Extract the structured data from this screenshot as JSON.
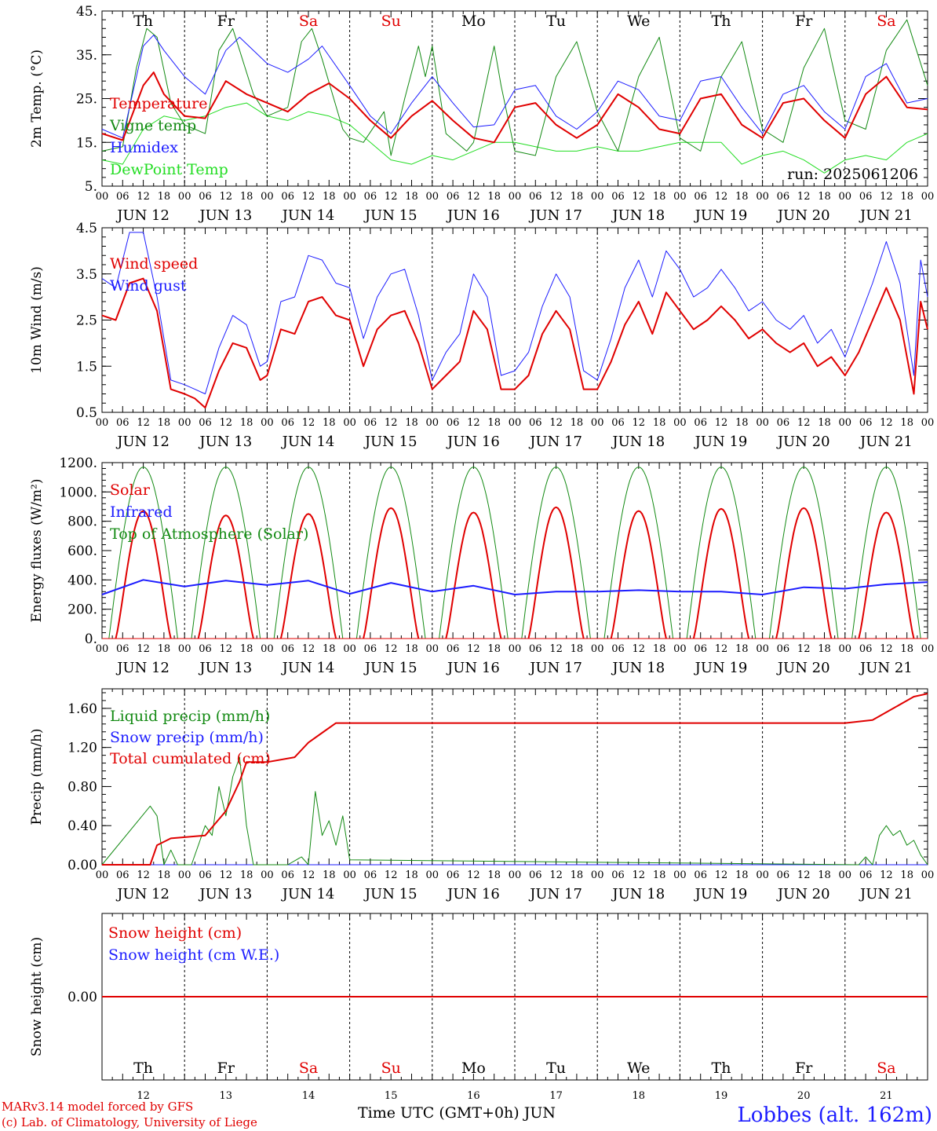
{
  "colors": {
    "red": "#e00000",
    "green": "#138a13",
    "blue": "#1c1cff",
    "lightgreen": "#22dd22",
    "black": "#000000"
  },
  "footer": {
    "model": "MARv3.14 model forced by GFS",
    "lab": "(c) Lab. of Climatology, University of Liege",
    "xtitle": "Time UTC (GMT+0h) JUN",
    "station": "Lobbes (alt. 162m)",
    "run": "run: 2025061206"
  },
  "days": [
    "Th",
    "Fr",
    "Sa",
    "Su",
    "Mo",
    "Tu",
    "We",
    "Th",
    "Fr",
    "Sa"
  ],
  "weekend_flags": [
    false,
    false,
    true,
    true,
    false,
    false,
    false,
    false,
    false,
    true
  ],
  "dates": [
    "JUN 12",
    "JUN 13",
    "JUN 14",
    "JUN 15",
    "JUN 16",
    "JUN 17",
    "JUN 18",
    "JUN 19",
    "JUN 20",
    "JUN 21"
  ],
  "day_numbers": [
    "12",
    "13",
    "14",
    "15",
    "16",
    "17",
    "18",
    "19",
    "20",
    "21"
  ],
  "hour_ticks": [
    "00",
    "06",
    "12",
    "18"
  ],
  "final_tick": "00",
  "chart_data": [
    {
      "type": "line",
      "ylabel": "2m Temp. (°C)",
      "ylim": [
        5,
        45
      ],
      "yticks": [
        "5.",
        "15.",
        "25.",
        "35.",
        "45."
      ],
      "ytick_values": [
        5,
        15,
        25,
        35,
        45
      ],
      "x_unit": "hours since JUN 12 00 UTC",
      "series": [
        {
          "name": "Temperature",
          "color": "red",
          "width": 2,
          "x": [
            0,
            6,
            12,
            15,
            18,
            24,
            30,
            36,
            42,
            48,
            54,
            60,
            66,
            72,
            78,
            84,
            90,
            96,
            102,
            108,
            114,
            120,
            126,
            132,
            138,
            144,
            150,
            156,
            162,
            168,
            174,
            180,
            186,
            192,
            198,
            204,
            210,
            216,
            222,
            228,
            234,
            240
          ],
          "y": [
            17,
            15.5,
            28,
            31,
            26,
            21,
            20.5,
            29,
            26,
            24,
            22,
            26,
            28.5,
            25,
            20,
            16,
            21,
            24.5,
            20,
            16,
            15,
            23,
            24,
            19,
            16,
            19,
            26,
            23,
            18,
            17,
            25,
            26,
            19,
            16,
            24,
            25,
            20,
            16,
            26,
            30,
            23,
            22.5
          ]
        },
        {
          "name": "Vigne temp",
          "color": "green",
          "width": 1,
          "x": [
            0,
            6,
            10,
            13,
            16,
            20,
            24,
            30,
            34,
            38,
            44,
            48,
            54,
            58,
            61,
            64,
            70,
            72,
            76,
            82,
            84,
            88,
            92,
            94,
            96,
            100,
            106,
            108,
            114,
            116,
            120,
            126,
            132,
            138,
            144,
            150,
            156,
            162,
            168,
            174,
            180,
            186,
            192,
            198,
            204,
            210,
            216,
            222,
            228,
            234,
            240
          ],
          "y": [
            13,
            14,
            32,
            41,
            39,
            24,
            19,
            17,
            36,
            41,
            26,
            21,
            23,
            38,
            41,
            34,
            18,
            16,
            15,
            22,
            12,
            25,
            37,
            30,
            37,
            17,
            13,
            15,
            37,
            28,
            13,
            12,
            30,
            38,
            22,
            13,
            30,
            39,
            16,
            13,
            30,
            38,
            18,
            15,
            32,
            41,
            20,
            18,
            36,
            43,
            28
          ]
        },
        {
          "name": "Humidex",
          "color": "blue",
          "width": 1,
          "x": [
            0,
            6,
            12,
            15,
            18,
            24,
            30,
            36,
            40,
            48,
            54,
            60,
            64,
            72,
            78,
            84,
            90,
            96,
            102,
            108,
            114,
            120,
            126,
            132,
            138,
            144,
            150,
            156,
            162,
            168,
            174,
            180,
            186,
            192,
            198,
            204,
            210,
            216,
            222,
            228,
            234,
            240
          ],
          "y": [
            18,
            16,
            37,
            39.5,
            36,
            30,
            26,
            36,
            39,
            33,
            31,
            34,
            37,
            28,
            21,
            17,
            24,
            30,
            24,
            18.5,
            19,
            27,
            28,
            21,
            18,
            22,
            29,
            27,
            21,
            20,
            29,
            30,
            23,
            17,
            26,
            28,
            22,
            18,
            30,
            33,
            24,
            25
          ]
        },
        {
          "name": "DewPoint Temp",
          "color": "lightgreen",
          "width": 1,
          "x": [
            0,
            6,
            12,
            18,
            24,
            30,
            36,
            42,
            48,
            54,
            60,
            66,
            72,
            78,
            84,
            90,
            96,
            102,
            108,
            114,
            120,
            126,
            132,
            138,
            144,
            150,
            156,
            162,
            168,
            174,
            180,
            186,
            192,
            198,
            204,
            210,
            216,
            222,
            228,
            234,
            240
          ],
          "y": [
            11,
            10,
            18,
            21,
            20,
            21,
            23,
            24,
            21,
            20,
            22,
            21,
            19,
            15,
            11,
            10,
            12,
            11,
            13,
            15,
            15,
            14,
            13,
            13,
            14,
            13,
            13,
            14,
            15,
            15,
            15,
            10,
            12,
            13,
            11,
            8,
            11,
            12,
            11,
            15,
            17
          ]
        }
      ],
      "legend": [
        "Temperature",
        "Vigne temp",
        "Humidex",
        "DewPoint Temp"
      ]
    },
    {
      "type": "line",
      "ylabel": "10m Wind (m/s)",
      "ylim": [
        0.5,
        4.5
      ],
      "yticks": [
        "0.5",
        "1.5",
        "2.5",
        "3.5",
        "4.5"
      ],
      "ytick_values": [
        0.5,
        1.5,
        2.5,
        3.5,
        4.5
      ],
      "series": [
        {
          "name": "Wind speed",
          "color": "red",
          "width": 2,
          "x": [
            0,
            4,
            8,
            12,
            16,
            20,
            24,
            27,
            30,
            34,
            38,
            42,
            46,
            48,
            52,
            56,
            60,
            64,
            68,
            72,
            76,
            80,
            84,
            88,
            92,
            96,
            100,
            104,
            108,
            112,
            116,
            120,
            124,
            128,
            132,
            136,
            140,
            144,
            148,
            152,
            156,
            160,
            164,
            168,
            172,
            176,
            180,
            184,
            188,
            192,
            196,
            200,
            204,
            208,
            212,
            216,
            220,
            224,
            228,
            232,
            236,
            238,
            240
          ],
          "y": [
            2.6,
            2.5,
            3.3,
            3.4,
            2.7,
            1.0,
            0.9,
            0.8,
            0.6,
            1.4,
            2.0,
            1.9,
            1.2,
            1.3,
            2.3,
            2.2,
            2.9,
            3.0,
            2.6,
            2.5,
            1.5,
            2.3,
            2.6,
            2.7,
            2.0,
            1.0,
            1.3,
            1.6,
            2.7,
            2.3,
            1.0,
            1.0,
            1.3,
            2.2,
            2.7,
            2.3,
            1.0,
            1.0,
            1.6,
            2.4,
            2.9,
            2.2,
            3.1,
            2.7,
            2.3,
            2.5,
            2.8,
            2.5,
            2.1,
            2.3,
            2.0,
            1.8,
            2.0,
            1.5,
            1.7,
            1.3,
            1.8,
            2.5,
            3.2,
            2.5,
            0.9,
            2.9,
            2.3
          ]
        },
        {
          "name": "Wind gust",
          "color": "blue",
          "width": 1,
          "x": [
            0,
            4,
            8,
            12,
            16,
            20,
            24,
            27,
            30,
            34,
            38,
            42,
            46,
            48,
            52,
            56,
            60,
            64,
            68,
            72,
            76,
            80,
            84,
            88,
            92,
            96,
            100,
            104,
            108,
            112,
            116,
            120,
            124,
            128,
            132,
            136,
            140,
            144,
            148,
            152,
            156,
            160,
            164,
            168,
            172,
            176,
            180,
            184,
            188,
            192,
            196,
            200,
            204,
            208,
            212,
            216,
            220,
            224,
            228,
            232,
            236,
            238,
            240
          ],
          "y": [
            3.4,
            3.2,
            4.4,
            4.4,
            3.0,
            1.2,
            1.1,
            1.0,
            0.9,
            1.9,
            2.6,
            2.4,
            1.5,
            1.6,
            2.9,
            3.0,
            3.9,
            3.8,
            3.3,
            3.2,
            2.1,
            3.0,
            3.5,
            3.6,
            2.6,
            1.2,
            1.8,
            2.2,
            3.5,
            3.0,
            1.3,
            1.4,
            1.8,
            2.8,
            3.5,
            3.0,
            1.4,
            1.2,
            2.1,
            3.2,
            3.8,
            3.0,
            4.0,
            3.6,
            3.0,
            3.2,
            3.6,
            3.2,
            2.7,
            2.9,
            2.5,
            2.3,
            2.6,
            2.0,
            2.3,
            1.7,
            2.5,
            3.3,
            4.2,
            3.3,
            1.3,
            3.8,
            3.0
          ]
        }
      ],
      "legend": [
        "Wind speed",
        "Wind gust"
      ]
    },
    {
      "type": "line",
      "ylabel": "Energy fluxes (W/m²)",
      "ylim": [
        0,
        1200
      ],
      "yticks": [
        "0.",
        "200.",
        "400.",
        "600.",
        "800.",
        "1000.",
        "1200."
      ],
      "ytick_values": [
        0,
        200,
        400,
        600,
        800,
        1000,
        1200
      ],
      "solar_peaks": [
        870,
        840,
        850,
        890,
        860,
        895,
        870,
        885,
        890,
        860
      ],
      "toa_peak": 1170,
      "infrared": {
        "x": [
          0,
          12,
          24,
          36,
          48,
          60,
          72,
          84,
          96,
          108,
          120,
          132,
          144,
          156,
          168,
          180,
          192,
          204,
          216,
          228,
          240
        ],
        "y": [
          300,
          400,
          355,
          395,
          365,
          395,
          305,
          380,
          320,
          360,
          300,
          320,
          320,
          330,
          320,
          320,
          300,
          350,
          340,
          370,
          385
        ]
      },
      "series_names": {
        "solar": "Solar",
        "infrared": "Infrared",
        "toa": "Top of Atmosphere (Solar)"
      },
      "legend": [
        "Solar",
        "Infrared",
        "Top of Atmosphere (Solar)"
      ]
    },
    {
      "type": "line",
      "ylabel": "Precip (mm/h)",
      "ylim": [
        0,
        1.8
      ],
      "yticks": [
        "0.00",
        "0.40",
        "0.80",
        "1.20",
        "1.60"
      ],
      "ytick_values": [
        0,
        0.4,
        0.8,
        1.2,
        1.6
      ],
      "series": [
        {
          "name": "Liquid precip (mm/h)",
          "color": "green",
          "width": 1,
          "x": [
            0,
            14,
            16,
            18,
            20,
            22,
            26,
            30,
            32,
            34,
            36,
            38,
            40,
            42,
            44,
            46,
            48,
            54,
            58,
            60,
            62,
            64,
            66,
            68,
            70,
            72,
            220,
            222,
            224,
            226,
            228,
            230,
            232,
            234,
            236,
            238,
            240
          ],
          "y": [
            0,
            0.6,
            0.5,
            0,
            0.15,
            0,
            0,
            0.4,
            0.3,
            0.8,
            0.5,
            0.9,
            1.1,
            0.4,
            0,
            0,
            0,
            0,
            0.08,
            0,
            0.75,
            0.3,
            0.45,
            0.2,
            0.5,
            0.05,
            0,
            0.08,
            0,
            0.3,
            0.4,
            0.3,
            0.35,
            0.2,
            0.25,
            0.1,
            0
          ]
        },
        {
          "name": "Snow precip (mm/h)",
          "color": "blue",
          "width": 1,
          "x": [
            0,
            240
          ],
          "y": [
            0,
            0
          ]
        },
        {
          "name": "Total cumulated (cm)",
          "color": "red",
          "width": 2,
          "x": [
            0,
            14,
            16,
            20,
            30,
            36,
            40,
            42,
            48,
            56,
            60,
            64,
            68,
            72,
            216,
            224,
            230,
            236,
            240
          ],
          "y": [
            0,
            0,
            0.2,
            0.27,
            0.3,
            0.55,
            0.85,
            1.05,
            1.05,
            1.1,
            1.25,
            1.35,
            1.45,
            1.45,
            1.45,
            1.48,
            1.6,
            1.72,
            1.75
          ]
        }
      ],
      "legend": [
        "Liquid precip (mm/h)",
        "Snow precip (mm/h)",
        "Total cumulated (cm)"
      ]
    },
    {
      "type": "line",
      "ylabel": "Snow height (cm)",
      "ylim": [
        -1,
        1
      ],
      "yticks": [
        "0.00"
      ],
      "ytick_values": [
        0
      ],
      "series": [
        {
          "name": "Snow height (cm)",
          "color": "red",
          "width": 2,
          "x": [
            0,
            240
          ],
          "y": [
            0,
            0
          ]
        },
        {
          "name": "Snow height (cm W.E.)",
          "color": "blue",
          "width": 1,
          "x": [
            0,
            240
          ],
          "y": [
            0,
            0
          ]
        }
      ],
      "legend": [
        "Snow height (cm)",
        "Snow height (cm W.E.)"
      ]
    }
  ]
}
